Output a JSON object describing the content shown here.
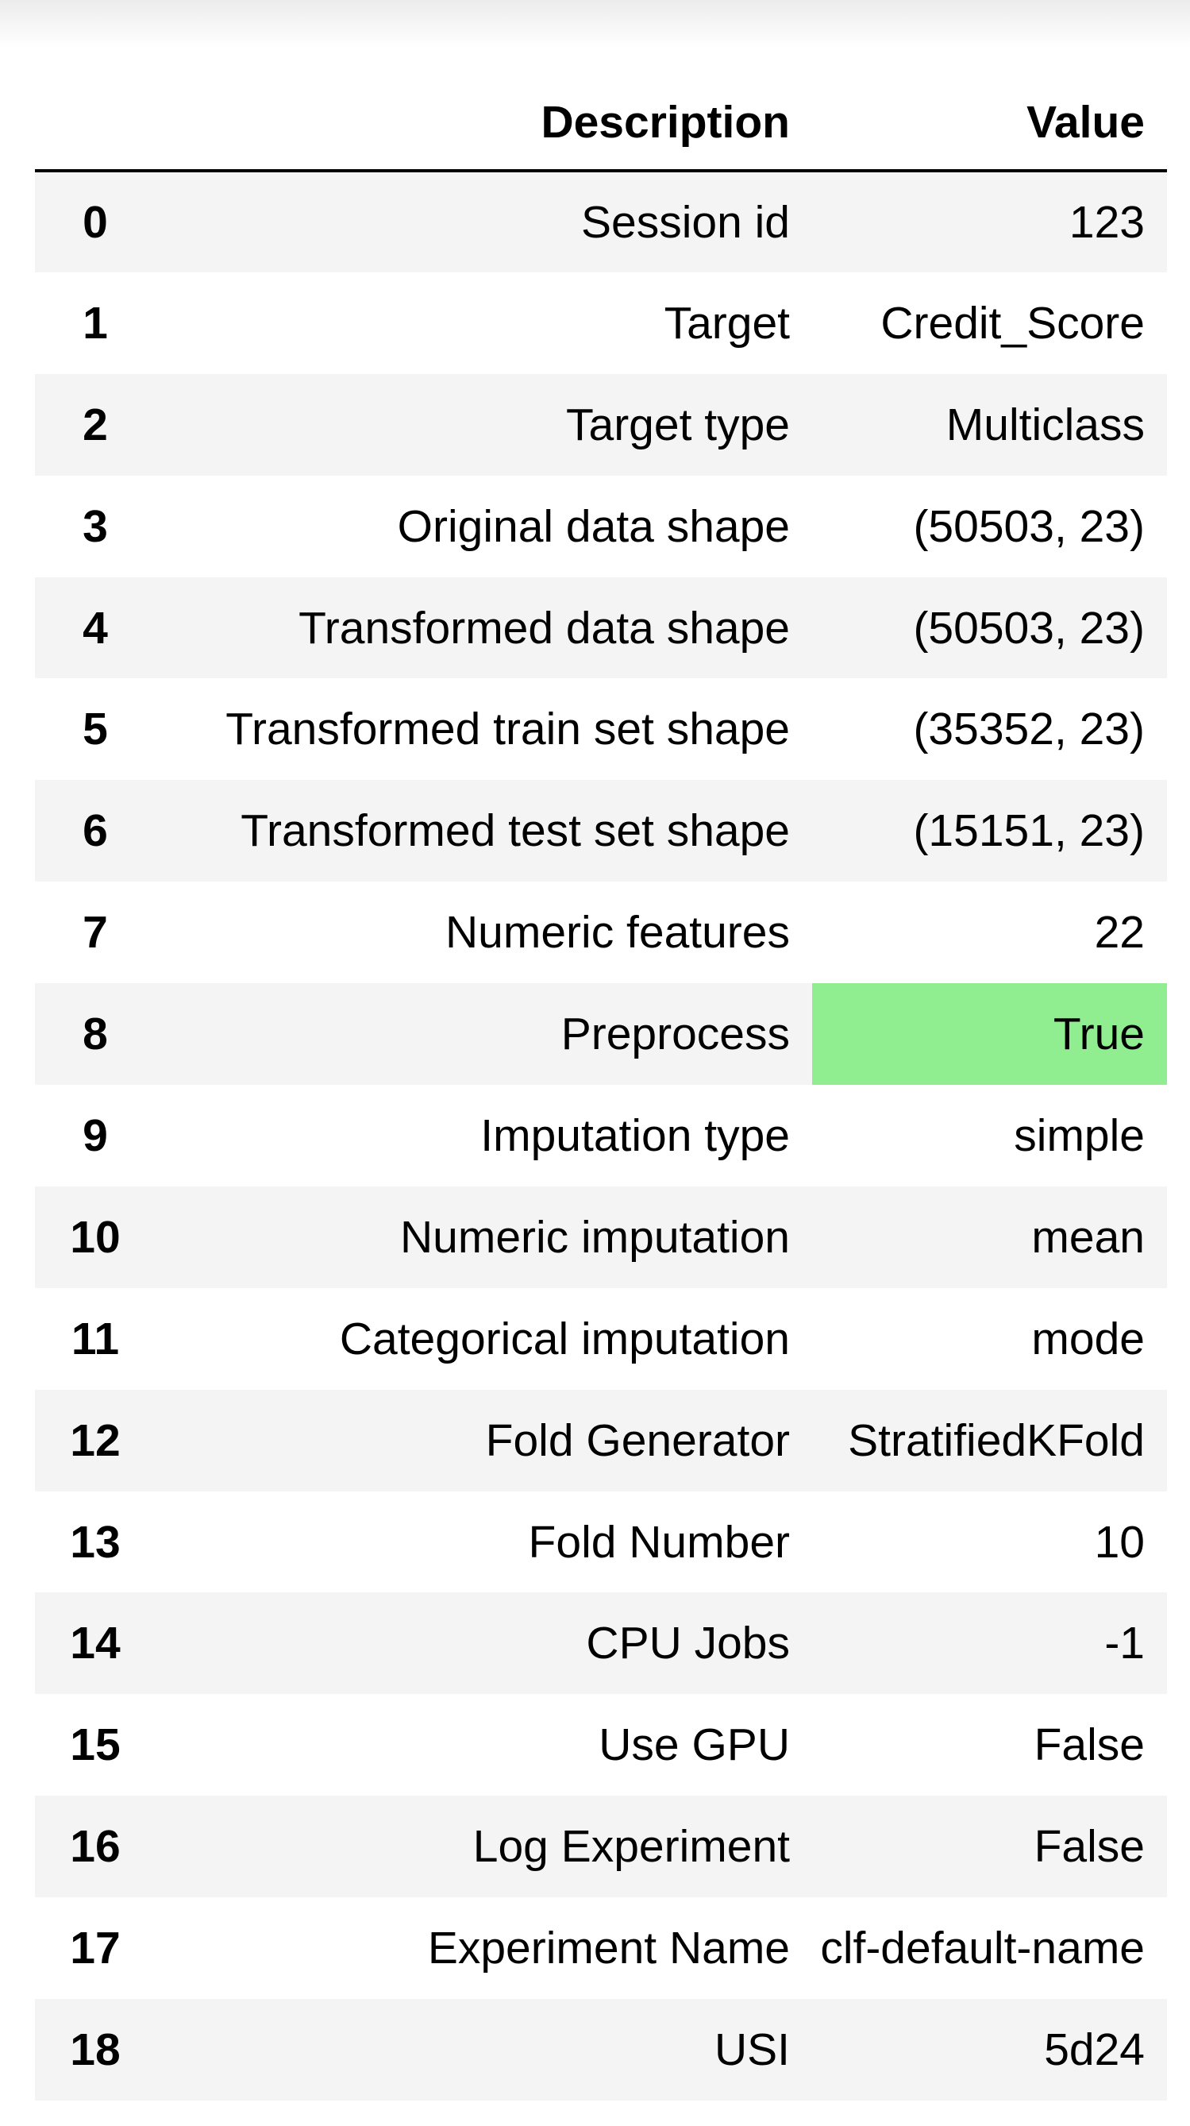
{
  "table": {
    "headers": {
      "index": "",
      "description": "Description",
      "value": "Value"
    },
    "highlight_color": "#90ee90",
    "rows": [
      {
        "index": "0",
        "description": "Session id",
        "value": "123"
      },
      {
        "index": "1",
        "description": "Target",
        "value": "Credit_Score"
      },
      {
        "index": "2",
        "description": "Target type",
        "value": "Multiclass"
      },
      {
        "index": "3",
        "description": "Original data shape",
        "value": "(50503, 23)"
      },
      {
        "index": "4",
        "description": "Transformed data shape",
        "value": "(50503, 23)"
      },
      {
        "index": "5",
        "description": "Transformed train set shape",
        "value": "(35352, 23)"
      },
      {
        "index": "6",
        "description": "Transformed test set shape",
        "value": "(15151, 23)"
      },
      {
        "index": "7",
        "description": "Numeric features",
        "value": "22"
      },
      {
        "index": "8",
        "description": "Preprocess",
        "value": "True",
        "highlighted": true
      },
      {
        "index": "9",
        "description": "Imputation type",
        "value": "simple"
      },
      {
        "index": "10",
        "description": "Numeric imputation",
        "value": "mean"
      },
      {
        "index": "11",
        "description": "Categorical imputation",
        "value": "mode"
      },
      {
        "index": "12",
        "description": "Fold Generator",
        "value": "StratifiedKFold"
      },
      {
        "index": "13",
        "description": "Fold Number",
        "value": "10"
      },
      {
        "index": "14",
        "description": "CPU Jobs",
        "value": "-1"
      },
      {
        "index": "15",
        "description": "Use GPU",
        "value": "False"
      },
      {
        "index": "16",
        "description": "Log Experiment",
        "value": "False"
      },
      {
        "index": "17",
        "description": "Experiment Name",
        "value": "clf-default-name"
      },
      {
        "index": "18",
        "description": "USI",
        "value": "5d24"
      }
    ]
  }
}
